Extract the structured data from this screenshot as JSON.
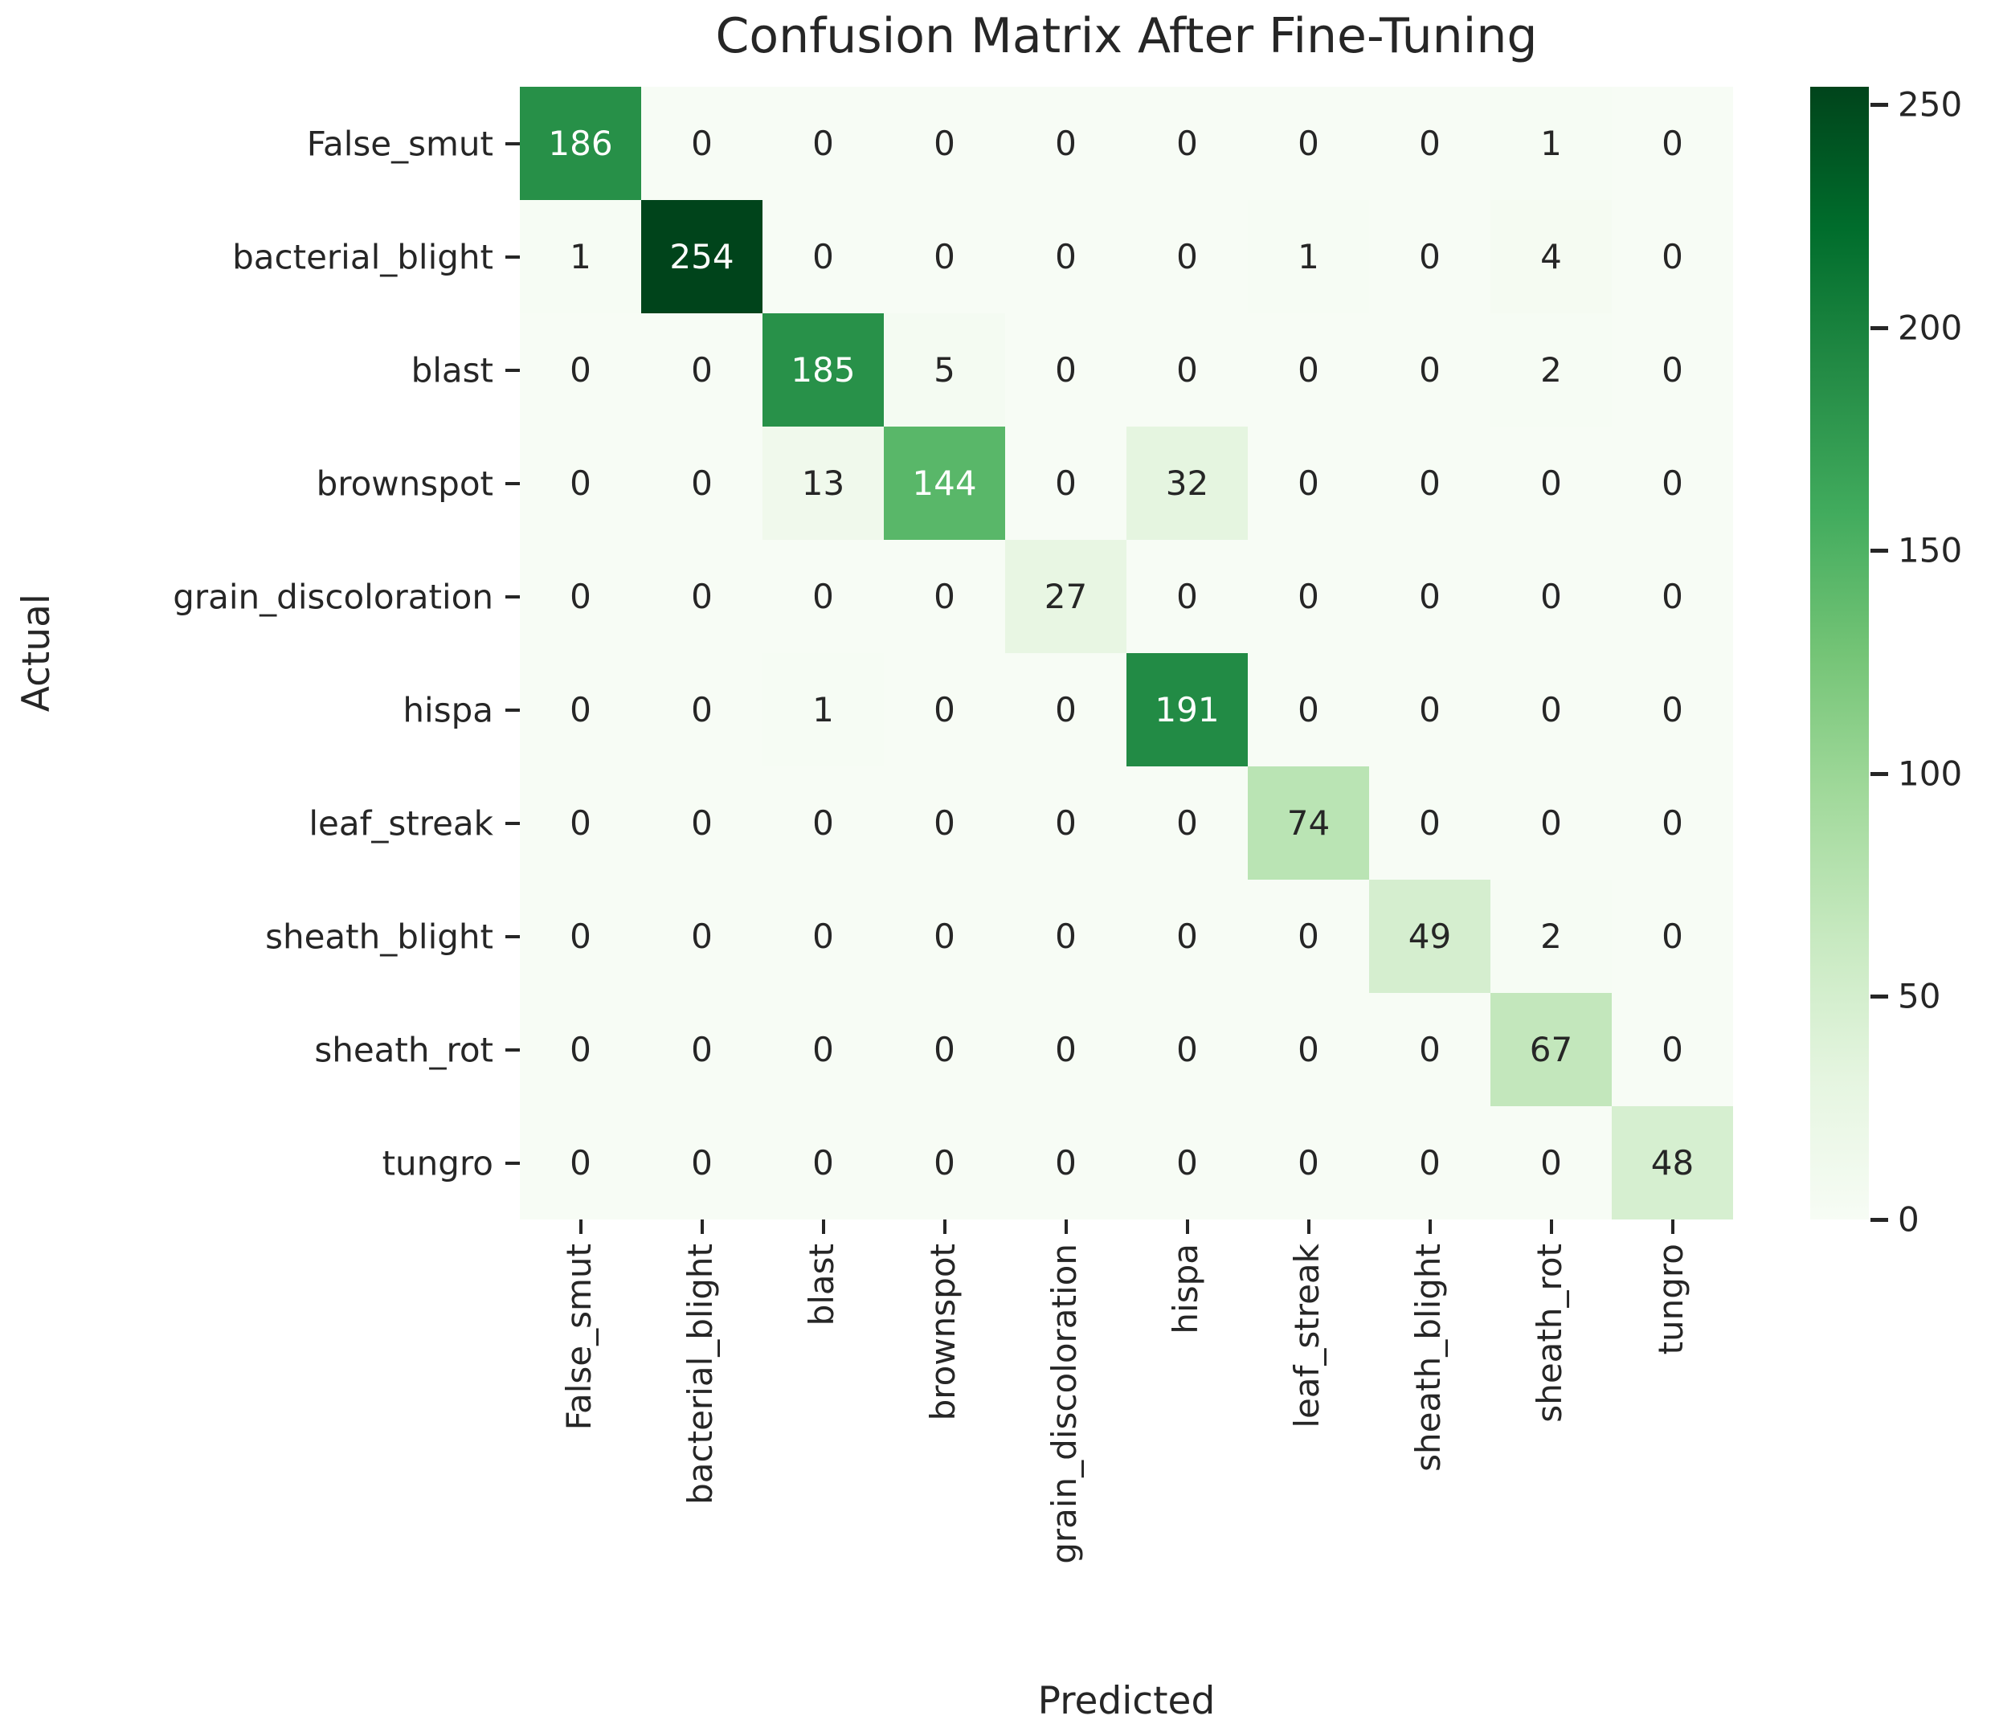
{
  "title": "Confusion Matrix After Fine-Tuning",
  "chart_data": {
    "type": "heatmap",
    "title": "Confusion Matrix After Fine-Tuning",
    "xlabel": "Predicted",
    "ylabel": "Actual",
    "categories": [
      "False_smut",
      "bacterial_blight",
      "blast",
      "brownspot",
      "grain_discoloration",
      "hispa",
      "leaf_streak",
      "sheath_blight",
      "sheath_rot",
      "tungro"
    ],
    "matrix": [
      [
        186,
        0,
        0,
        0,
        0,
        0,
        0,
        0,
        1,
        0
      ],
      [
        1,
        254,
        0,
        0,
        0,
        0,
        1,
        0,
        4,
        0
      ],
      [
        0,
        0,
        185,
        5,
        0,
        0,
        0,
        0,
        2,
        0
      ],
      [
        0,
        0,
        13,
        144,
        0,
        32,
        0,
        0,
        0,
        0
      ],
      [
        0,
        0,
        0,
        0,
        27,
        0,
        0,
        0,
        0,
        0
      ],
      [
        0,
        0,
        1,
        0,
        0,
        191,
        0,
        0,
        0,
        0
      ],
      [
        0,
        0,
        0,
        0,
        0,
        0,
        74,
        0,
        0,
        0
      ],
      [
        0,
        0,
        0,
        0,
        0,
        0,
        0,
        49,
        2,
        0
      ],
      [
        0,
        0,
        0,
        0,
        0,
        0,
        0,
        0,
        67,
        0
      ],
      [
        0,
        0,
        0,
        0,
        0,
        0,
        0,
        0,
        0,
        48
      ]
    ],
    "vmin": 0,
    "vmax": 254,
    "colorbar_ticks": [
      0,
      50,
      100,
      150,
      200,
      250
    ],
    "legend_position": "right",
    "grid": false,
    "colormap": {
      "name": "Greens",
      "stops": [
        "#f7fcf5",
        "#e5f5e0",
        "#c7e9c0",
        "#a1d99b",
        "#74c476",
        "#41ab5d",
        "#238b45",
        "#006d2c",
        "#00441b"
      ]
    },
    "annotation_color_dark": "#262626",
    "annotation_color_light": "#ffffff",
    "tick_color": "#262626"
  }
}
